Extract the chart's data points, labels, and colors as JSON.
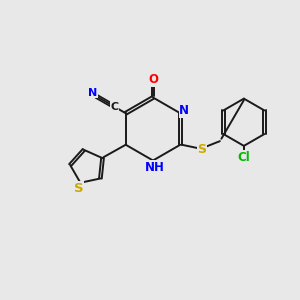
{
  "bg_color": "#e8e8e8",
  "bond_color": "#1a1a1a",
  "atom_colors": {
    "N": "#0000ff",
    "O": "#ff0000",
    "S": "#ccaa00",
    "Cl": "#00bb00",
    "C": "#1a1a1a"
  },
  "figsize": [
    3.0,
    3.0
  ],
  "dpi": 100
}
